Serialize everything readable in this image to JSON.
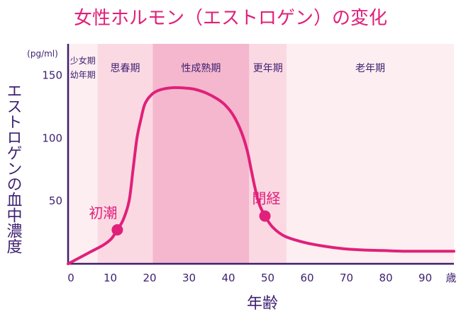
{
  "chart_data": {
    "type": "line",
    "title": "女性ホルモン（エストロゲン）の変化",
    "xlabel": "年齢",
    "x_unit": "歳",
    "ylabel": "エストロゲンの血中濃度",
    "y_unit": "(pg/ml)",
    "xlim": [
      0,
      98
    ],
    "ylim": [
      0,
      175
    ],
    "x_ticks": [
      0,
      10,
      20,
      30,
      40,
      50,
      60,
      70,
      80,
      90
    ],
    "y_ticks": [
      50,
      100,
      150
    ],
    "grid": false,
    "stages": [
      {
        "label_lines": [
          "少女期",
          "幼年期"
        ],
        "from": 0,
        "to": 7.5,
        "color": "#fdeef1"
      },
      {
        "label_lines": [
          "思春期"
        ],
        "from": 7.5,
        "to": 21.5,
        "color": "#fbd9e3"
      },
      {
        "label_lines": [
          "性成熟期"
        ],
        "from": 21.5,
        "to": 46,
        "color": "#f4b7cd"
      },
      {
        "label_lines": [
          "更年期"
        ],
        "from": 46,
        "to": 55.5,
        "color": "#fbd9e3"
      },
      {
        "label_lines": [
          "老年期"
        ],
        "from": 55.5,
        "to": 98,
        "color": "#fdeef1"
      }
    ],
    "series": [
      {
        "color": "#e0207a",
        "points": [
          [
            0,
            0
          ],
          [
            3,
            5
          ],
          [
            6,
            10
          ],
          [
            9,
            15
          ],
          [
            11,
            20
          ],
          [
            12.5,
            27
          ],
          [
            14,
            35
          ],
          [
            15.5,
            50
          ],
          [
            16.5,
            75
          ],
          [
            17.5,
            100
          ],
          [
            18.5,
            115
          ],
          [
            19.5,
            127
          ],
          [
            21,
            134
          ],
          [
            23,
            138
          ],
          [
            26,
            140
          ],
          [
            29,
            140
          ],
          [
            32,
            139
          ],
          [
            35,
            136
          ],
          [
            38,
            131
          ],
          [
            40,
            126
          ],
          [
            42,
            118
          ],
          [
            44,
            105
          ],
          [
            45.5,
            90
          ],
          [
            46.5,
            75
          ],
          [
            47.5,
            60
          ],
          [
            48.5,
            48
          ],
          [
            50,
            38
          ],
          [
            52,
            29
          ],
          [
            55,
            22
          ],
          [
            60,
            17
          ],
          [
            65,
            14
          ],
          [
            70,
            12
          ],
          [
            75,
            11
          ],
          [
            80,
            10.5
          ],
          [
            85,
            10
          ],
          [
            90,
            10
          ],
          [
            98,
            10
          ]
        ]
      }
    ],
    "annotations": [
      {
        "label": "初潮",
        "x": 12.5,
        "y": 27
      },
      {
        "label": "閉経",
        "x": 50,
        "y": 38
      }
    ]
  }
}
